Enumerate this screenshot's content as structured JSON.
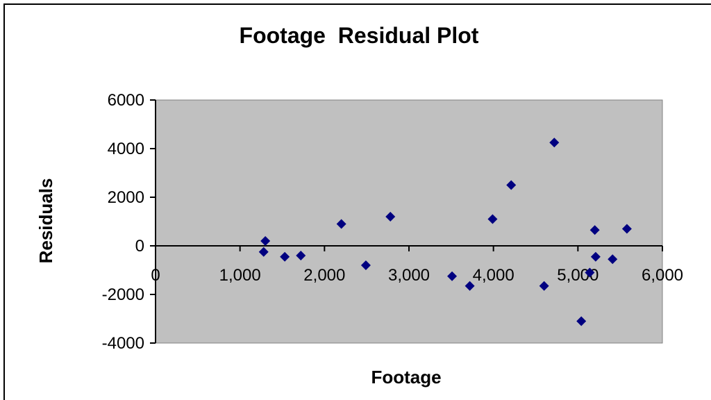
{
  "chart_data": {
    "type": "scatter",
    "title": "Footage  Residual Plot",
    "xlabel": "Footage",
    "ylabel": "Residuals",
    "xlim": [
      0,
      6000
    ],
    "ylim": [
      -4000,
      6000
    ],
    "x_ticks": [
      "0",
      "1,000",
      "2,000",
      "3,000",
      "4,000",
      "5,000",
      "6,000"
    ],
    "x_tick_values": [
      0,
      1000,
      2000,
      3000,
      4000,
      5000,
      6000
    ],
    "y_ticks": [
      "6000",
      "4000",
      "2000",
      "0",
      "-2000",
      "-4000"
    ],
    "y_tick_values": [
      6000,
      4000,
      2000,
      0,
      -2000,
      -4000
    ],
    "grid": false,
    "plot_background": "#c0c0c0",
    "marker_color": "#000080",
    "marker": "diamond",
    "points": [
      {
        "x": 1280,
        "y": -250
      },
      {
        "x": 1300,
        "y": 200
      },
      {
        "x": 1530,
        "y": -450
      },
      {
        "x": 1720,
        "y": -400
      },
      {
        "x": 2200,
        "y": 900
      },
      {
        "x": 2490,
        "y": -800
      },
      {
        "x": 2780,
        "y": 1200
      },
      {
        "x": 3510,
        "y": -1250
      },
      {
        "x": 3720,
        "y": -1650
      },
      {
        "x": 3990,
        "y": 1100
      },
      {
        "x": 4210,
        "y": 2500
      },
      {
        "x": 4600,
        "y": -1650
      },
      {
        "x": 4720,
        "y": 4250
      },
      {
        "x": 5040,
        "y": -3100
      },
      {
        "x": 5140,
        "y": -1100
      },
      {
        "x": 5200,
        "y": 650
      },
      {
        "x": 5210,
        "y": -450
      },
      {
        "x": 5410,
        "y": -550
      },
      {
        "x": 5580,
        "y": 700
      }
    ]
  }
}
